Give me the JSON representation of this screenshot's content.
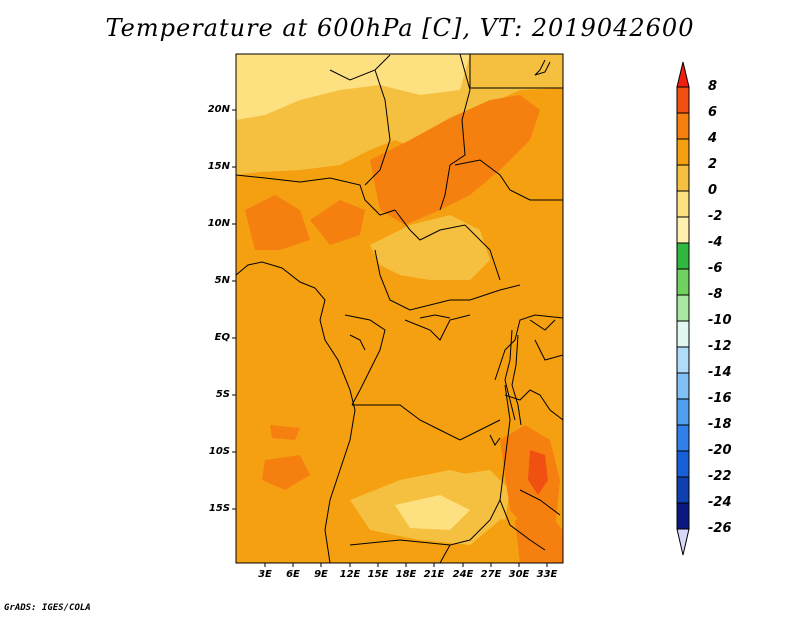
{
  "title": "Temperature at 600hPa [C], VT: 2019042600",
  "credit": "GrADS: IGES/COLA",
  "map": {
    "y_ticks": [
      "20N",
      "15N",
      "10N",
      "5N",
      "EQ",
      "5S",
      "10S",
      "15S"
    ],
    "x_ticks": [
      "3E",
      "6E",
      "9E",
      "12E",
      "15E",
      "18E",
      "21E",
      "24E",
      "27E",
      "30E",
      "33E"
    ],
    "dominant_field_color": "#f5a010"
  },
  "colorbar": {
    "labels": [
      "8",
      "6",
      "4",
      "2",
      "0",
      "-2",
      "-4",
      "-6",
      "-8",
      "-10",
      "-12",
      "-14",
      "-16",
      "-18",
      "-20",
      "-22",
      "-24",
      "-26"
    ],
    "colors_top_to_bottom": [
      "#f02010",
      "#f05010",
      "#f58010",
      "#f5a010",
      "#f5c040",
      "#fde080",
      "#fff0b0",
      "#30b840",
      "#70d060",
      "#a8e8a0",
      "#e0f8f0",
      "#b0dcfa",
      "#80c0f5",
      "#50a0f0",
      "#3080e8",
      "#1860d8",
      "#1040b0",
      "#0a1880",
      "#d8d8f8"
    ]
  },
  "chart_data": {
    "type": "heatmap",
    "title": "Temperature at 600hPa [C], VT: 2019042600",
    "x_ticks": [
      "3E",
      "6E",
      "9E",
      "12E",
      "15E",
      "18E",
      "21E",
      "24E",
      "27E",
      "30E",
      "33E"
    ],
    "y_ticks": [
      "20N",
      "15N",
      "10N",
      "5N",
      "EQ",
      "5S",
      "10S",
      "15S"
    ],
    "colorbar_levels": [
      8,
      6,
      4,
      2,
      0,
      -2,
      -4,
      -6,
      -8,
      -10,
      -12,
      -14,
      -16,
      -18,
      -20,
      -22,
      -24,
      -26
    ],
    "observed_value_range": [
      -2,
      6
    ]
  }
}
